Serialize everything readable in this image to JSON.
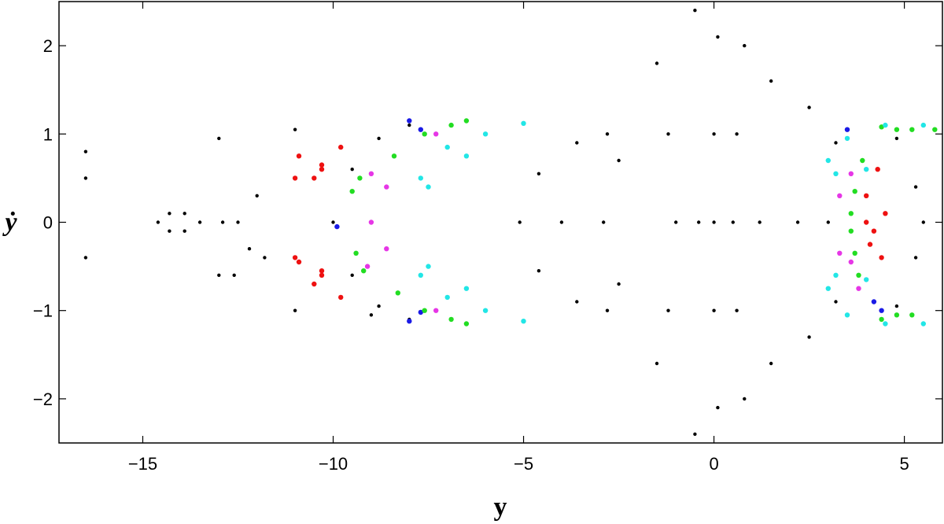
{
  "chart_data": {
    "type": "scatter",
    "title": "",
    "xlabel": "y",
    "ylabel": "ẏ",
    "xlim": [
      -17.2,
      6
    ],
    "ylim": [
      -2.5,
      2.5
    ],
    "grid": false,
    "x_ticks": [
      -15,
      -10,
      -5,
      0,
      5
    ],
    "x_tick_labels": [
      "−15",
      "−10",
      "−5",
      "0",
      "5"
    ],
    "y_ticks": [
      -2,
      -1,
      0,
      1,
      2
    ],
    "y_tick_labels": [
      "−2",
      "−1",
      "0",
      "1",
      "2"
    ],
    "colors": {
      "black": "#000000",
      "red": "#ee1111",
      "blue": "#1a1ae6",
      "green": "#22dd22",
      "magenta": "#e636e6",
      "cyan": "#22e6e6"
    },
    "series": [
      {
        "color": "black",
        "points": [
          [
            -14.6,
            0.0
          ],
          [
            -14.3,
            0.1
          ],
          [
            -13.9,
            0.1
          ],
          [
            -13.5,
            0.0
          ],
          [
            -13.9,
            -0.1
          ],
          [
            -14.3,
            -0.1
          ],
          [
            -10.0,
            0.0
          ],
          [
            -9.5,
            0.6
          ],
          [
            -8.8,
            0.95
          ],
          [
            -8.0,
            1.1
          ],
          [
            -9.5,
            -0.6
          ],
          [
            -8.8,
            -0.95
          ],
          [
            -8.0,
            -1.1
          ],
          [
            -5.1,
            0.0
          ],
          [
            -4.6,
            0.55
          ],
          [
            -3.6,
            0.9
          ],
          [
            -2.8,
            1.0
          ],
          [
            -2.5,
            0.7
          ],
          [
            -2.9,
            0.0
          ],
          [
            -2.5,
            -0.7
          ],
          [
            -2.8,
            -1.0
          ],
          [
            -3.6,
            -0.9
          ],
          [
            -4.6,
            -0.55
          ],
          [
            -4.0,
            0.0
          ],
          [
            -1.5,
            1.8
          ],
          [
            -1.2,
            1.0
          ],
          [
            -1.0,
            0.0
          ],
          [
            -1.2,
            -1.0
          ],
          [
            -1.5,
            -1.6
          ],
          [
            -0.5,
            -2.4
          ],
          [
            -0.5,
            2.4
          ],
          [
            -0.4,
            0.0
          ],
          [
            0.1,
            2.1
          ],
          [
            0.0,
            1.0
          ],
          [
            0.0,
            0.0
          ],
          [
            0.0,
            -1.0
          ],
          [
            0.1,
            -2.1
          ],
          [
            0.8,
            2.0
          ],
          [
            0.6,
            1.0
          ],
          [
            0.5,
            0.0
          ],
          [
            0.6,
            -1.0
          ],
          [
            0.8,
            -2.0
          ],
          [
            1.5,
            1.6
          ],
          [
            1.2,
            0.0
          ],
          [
            1.5,
            -1.6
          ],
          [
            2.5,
            1.3
          ],
          [
            2.2,
            0.0
          ],
          [
            2.5,
            -1.3
          ],
          [
            3.2,
            0.9
          ],
          [
            3.0,
            0.0
          ],
          [
            3.2,
            -0.9
          ],
          [
            4.8,
            0.95
          ],
          [
            5.3,
            0.4
          ],
          [
            5.5,
            0.0
          ],
          [
            5.3,
            -0.4
          ],
          [
            4.8,
            -0.95
          ],
          [
            -16.5,
            0.8
          ],
          [
            -13.0,
            0.95
          ],
          [
            -11.0,
            1.05
          ],
          [
            -16.5,
            0.5
          ],
          [
            -12.0,
            0.3
          ],
          [
            -16.5,
            -0.4
          ],
          [
            -13.0,
            -0.6
          ],
          [
            -11.0,
            -1.0
          ],
          [
            -9.0,
            -1.05
          ],
          [
            -12.6,
            -0.6
          ],
          [
            -12.2,
            -0.3
          ],
          [
            -11.8,
            -0.4
          ],
          [
            -12.9,
            0.0
          ],
          [
            -12.5,
            0.0
          ]
        ]
      },
      {
        "color": "red",
        "points": [
          [
            -10.9,
            0.75
          ],
          [
            -10.3,
            0.65
          ],
          [
            -9.8,
            0.85
          ],
          [
            -10.5,
            0.5
          ],
          [
            -11.0,
            0.5
          ],
          [
            -10.3,
            0.6
          ],
          [
            -10.9,
            -0.45
          ],
          [
            -10.3,
            -0.6
          ],
          [
            -9.8,
            -0.85
          ],
          [
            -10.5,
            -0.7
          ],
          [
            -11.0,
            -0.4
          ],
          [
            -10.3,
            -0.55
          ],
          [
            4.0,
            0.3
          ],
          [
            4.3,
            0.6
          ],
          [
            4.5,
            0.1
          ],
          [
            4.4,
            -0.4
          ],
          [
            4.1,
            -0.25
          ],
          [
            4.0,
            0.0
          ],
          [
            4.2,
            -0.1
          ]
        ]
      },
      {
        "color": "blue",
        "points": [
          [
            -9.9,
            -0.05
          ],
          [
            -8.0,
            1.15
          ],
          [
            -7.7,
            1.05
          ],
          [
            -8.0,
            -1.12
          ],
          [
            -7.7,
            -1.02
          ],
          [
            3.5,
            1.05
          ],
          [
            4.2,
            -0.9
          ],
          [
            4.4,
            -1.0
          ]
        ]
      },
      {
        "color": "green",
        "points": [
          [
            -9.5,
            0.35
          ],
          [
            -9.3,
            0.5
          ],
          [
            -9.4,
            -0.35
          ],
          [
            -9.2,
            -0.55
          ],
          [
            -8.4,
            0.75
          ],
          [
            -8.3,
            -0.8
          ],
          [
            -7.6,
            1.0
          ],
          [
            -7.6,
            -1.0
          ],
          [
            -6.9,
            1.1
          ],
          [
            -6.9,
            -1.1
          ],
          [
            -6.5,
            1.15
          ],
          [
            -6.5,
            -1.15
          ],
          [
            3.7,
            0.35
          ],
          [
            3.6,
            0.1
          ],
          [
            3.6,
            -0.1
          ],
          [
            3.7,
            -0.35
          ],
          [
            3.8,
            -0.6
          ],
          [
            3.9,
            0.7
          ],
          [
            4.4,
            1.08
          ],
          [
            4.8,
            1.05
          ],
          [
            5.2,
            1.05
          ],
          [
            5.8,
            1.05
          ],
          [
            4.4,
            -1.1
          ],
          [
            4.8,
            -1.05
          ],
          [
            5.2,
            -1.05
          ]
        ]
      },
      {
        "color": "magenta",
        "points": [
          [
            -9.0,
            0.55
          ],
          [
            -9.0,
            0.0
          ],
          [
            -9.1,
            -0.5
          ],
          [
            -8.6,
            0.4
          ],
          [
            -8.6,
            -0.3
          ],
          [
            -7.3,
            1.0
          ],
          [
            -7.3,
            -1.0
          ],
          [
            3.6,
            0.55
          ],
          [
            3.6,
            -0.45
          ],
          [
            3.3,
            0.3
          ],
          [
            3.3,
            -0.35
          ],
          [
            3.8,
            -0.75
          ]
        ]
      },
      {
        "color": "cyan",
        "points": [
          [
            -7.7,
            0.5
          ],
          [
            -7.0,
            0.85
          ],
          [
            -6.0,
            1.0
          ],
          [
            -5.0,
            1.12
          ],
          [
            -6.5,
            0.75
          ],
          [
            -7.5,
            0.4
          ],
          [
            -7.7,
            -0.6
          ],
          [
            -7.0,
            -0.85
          ],
          [
            -6.0,
            -1.0
          ],
          [
            -5.0,
            -1.12
          ],
          [
            -6.5,
            -0.75
          ],
          [
            -7.5,
            -0.5
          ],
          [
            3.0,
            0.7
          ],
          [
            3.5,
            0.95
          ],
          [
            4.5,
            1.1
          ],
          [
            5.5,
            1.1
          ],
          [
            4.0,
            0.6
          ],
          [
            3.2,
            0.55
          ],
          [
            3.0,
            -0.75
          ],
          [
            3.5,
            -1.05
          ],
          [
            4.5,
            -1.15
          ],
          [
            5.5,
            -1.15
          ],
          [
            4.0,
            -0.65
          ],
          [
            3.2,
            -0.6
          ]
        ]
      }
    ]
  }
}
